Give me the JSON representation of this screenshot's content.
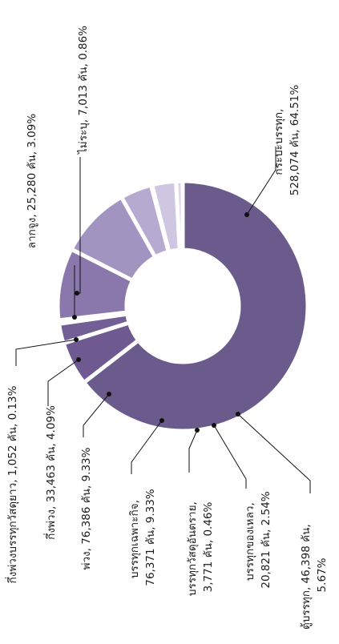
{
  "chart_data": {
    "type": "donut",
    "title": "",
    "slices": [
      {
        "label": "กระบะบรรทุก, 528,074 คัน, 64.51%",
        "value": 528074,
        "percent": 64.51,
        "color": "#6b5a8c"
      },
      {
        "label": "ตู้บรรทุก, 46,398 คัน, 5.67%",
        "value": 46398,
        "percent": 5.67,
        "color": "#6e5a90"
      },
      {
        "label": "บรรทุกของเหลว, 20,821 คัน, 2.54%",
        "value": 20821,
        "percent": 2.54,
        "color": "#725f95"
      },
      {
        "label": "บรรทุกวัสดุอันตราย, 3,771 คัน, 0.46%",
        "value": 3771,
        "percent": 0.46,
        "color": "#7b679d"
      },
      {
        "label": "บรรทุกเฉพาะกิจ, 76,371 คัน, 9.33%",
        "value": 76371,
        "percent": 9.33,
        "color": "#8a77ab"
      },
      {
        "label": "พ่วง, 76,386 คัน, 9.33%",
        "value": 76386,
        "percent": 9.33,
        "color": "#a294c0"
      },
      {
        "label": "กึ่งพ่วง, 33,463 คัน, 4.09%",
        "value": 33463,
        "percent": 4.09,
        "color": "#b6aad0"
      },
      {
        "label": "กึ่งพ่วงบรรทุกวัสดุยาว, 1,052 คัน, 0.13%",
        "value": 1052,
        "percent": 0.13,
        "color": "#c4bada"
      },
      {
        "label": "ลากจูง, 25,280 คัน, 3.09%",
        "value": 25280,
        "percent": 3.09,
        "color": "#cfc7e2"
      },
      {
        "label": "ไม่ระบุ, 7,013 คัน, 0.86%",
        "value": 7013,
        "percent": 0.86,
        "color": "#ddd7ec"
      }
    ]
  },
  "labels": {
    "truck_bed": [
      "กระบะบรรทุก,",
      "528,074 คัน, 64.51%"
    ],
    "box_truck": [
      "ตู้บรรทุก, 46,398 คัน,",
      "5.67%"
    ],
    "liquid": [
      "บรรทุกของเหลว,",
      "20,821 คัน, 2.54%"
    ],
    "hazardous": [
      "บรรทุกวัสดุอันตราย,",
      "3,771 คัน, 0.46%"
    ],
    "special": [
      "บรรทุกเฉพาะกิจ,",
      "76,371 คัน, 9.33%"
    ],
    "trailer": [
      "พ่วง, 76,386 คัน, 9.33%"
    ],
    "semi_trailer": [
      "กึ่งพ่วง, 33,463 คัน, 4.09%"
    ],
    "semi_trailer_long": [
      "กึ่งพ่วงบรรทุกวัสดุยาว, 1,052 คัน, 0.13%"
    ],
    "tractor": [
      "ลากจูง, 25,280 คัน, 3.09%"
    ],
    "unspecified": [
      "ไม่ระบุ, 7,013 คัน, 0.86%"
    ]
  }
}
